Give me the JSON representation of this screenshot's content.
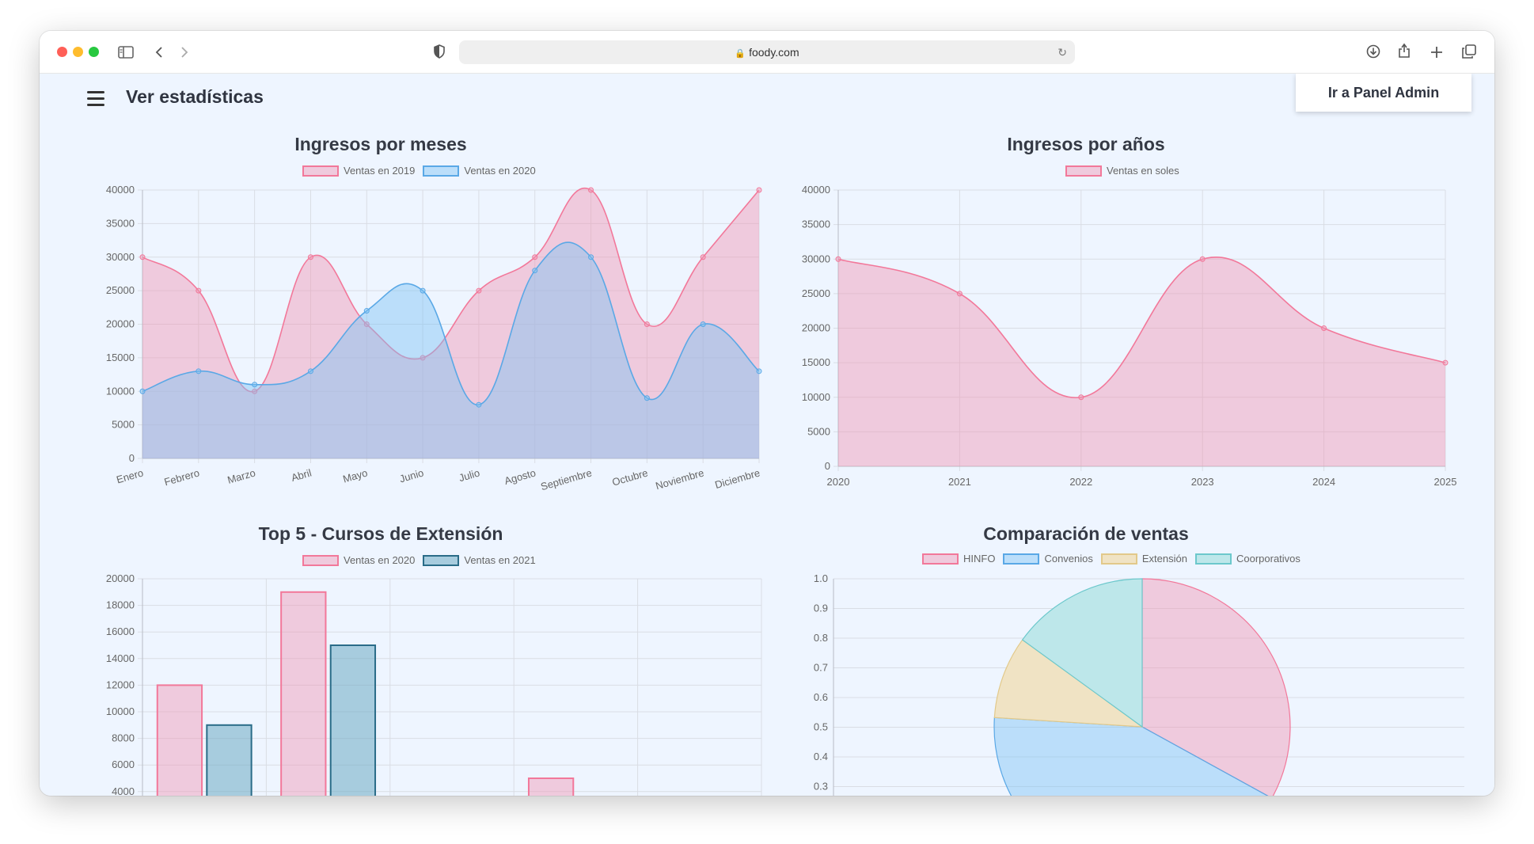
{
  "browser": {
    "url": "foody.com",
    "icons": [
      "sidebar-icon",
      "back-icon",
      "forward-icon",
      "shield-icon",
      "lock-icon",
      "reload-icon",
      "download-icon",
      "share-icon",
      "new-tab-icon",
      "tabs-icon"
    ]
  },
  "header": {
    "title": "Ver estadísticas",
    "admin_button": "Ir a Panel Admin"
  },
  "colors": {
    "pink_fill": "rgba(240,150,180,0.45)",
    "pink_line": "#f2789a",
    "blue_fill": "rgba(125,195,245,0.45)",
    "blue_line": "#5aa8e6",
    "teal_fill": "rgba(110,170,195,0.55)",
    "teal_line": "#2a6c88",
    "beige_fill": "#f0e3c4",
    "cyan_fill": "#bde7ea"
  },
  "charts": {
    "monthly": {
      "title": "Ingresos por meses",
      "legend": [
        "Ventas en 2019",
        "Ventas en 2020"
      ]
    },
    "yearly": {
      "title": "Ingresos por años",
      "legend": [
        "Ventas en soles"
      ]
    },
    "top5": {
      "title": "Top 5 - Cursos de Extensión",
      "legend": [
        "Ventas en 2020",
        "Ventas en 2021"
      ]
    },
    "pie": {
      "title": "Comparación de ventas",
      "legend": [
        "HINFO",
        "Convenios",
        "Extensión",
        "Coorporativos"
      ]
    }
  },
  "chart_data": [
    {
      "type": "area",
      "title": "Ingresos por meses",
      "categories": [
        "Enero",
        "Febrero",
        "Marzo",
        "Abril",
        "Mayo",
        "Junio",
        "Julio",
        "Agosto",
        "Septiembre",
        "Octubre",
        "Noviembre",
        "Diciembre"
      ],
      "series": [
        {
          "name": "Ventas en 2019",
          "values": [
            30000,
            25000,
            10000,
            30000,
            20000,
            15000,
            25000,
            30000,
            40000,
            20000,
            30000,
            40000
          ]
        },
        {
          "name": "Ventas en 2020",
          "values": [
            10000,
            13000,
            11000,
            13000,
            22000,
            25000,
            8000,
            28000,
            30000,
            9000,
            20000,
            13000
          ]
        }
      ],
      "ylim": [
        0,
        40000
      ],
      "yticks": [
        0,
        5000,
        10000,
        15000,
        20000,
        25000,
        30000,
        35000,
        40000
      ],
      "legend_position": "top",
      "grid": true
    },
    {
      "type": "area",
      "title": "Ingresos por años",
      "categories": [
        "2020",
        "2021",
        "2022",
        "2023",
        "2024",
        "2025"
      ],
      "series": [
        {
          "name": "Ventas en soles",
          "values": [
            30000,
            25000,
            10000,
            30000,
            20000,
            15000
          ]
        }
      ],
      "ylim": [
        0,
        40000
      ],
      "yticks": [
        0,
        5000,
        10000,
        15000,
        20000,
        25000,
        30000,
        35000,
        40000
      ],
      "legend_position": "top",
      "grid": true
    },
    {
      "type": "bar",
      "title": "Top 5 - Cursos de Extensión",
      "categories": [
        "",
        "",
        "",
        "",
        ""
      ],
      "series": [
        {
          "name": "Ventas en 2020",
          "values": [
            12000,
            19000,
            null,
            5000,
            null
          ]
        },
        {
          "name": "Ventas en 2021",
          "values": [
            9000,
            15000,
            null,
            null,
            null
          ]
        }
      ],
      "ylim": [
        0,
        20000
      ],
      "yticks": [
        4000,
        6000,
        8000,
        10000,
        12000,
        14000,
        16000,
        18000,
        20000
      ],
      "legend_position": "top",
      "grid": true
    },
    {
      "type": "pie",
      "title": "Comparación de ventas",
      "labels": [
        "HINFO",
        "Convenios",
        "Extensión",
        "Coorporativos"
      ],
      "values": [
        33,
        43,
        9,
        15
      ],
      "yticks": [
        0.3,
        0.4,
        0.5,
        0.6,
        0.7,
        0.8,
        0.9,
        1.0
      ],
      "legend_position": "top",
      "grid": true
    }
  ]
}
